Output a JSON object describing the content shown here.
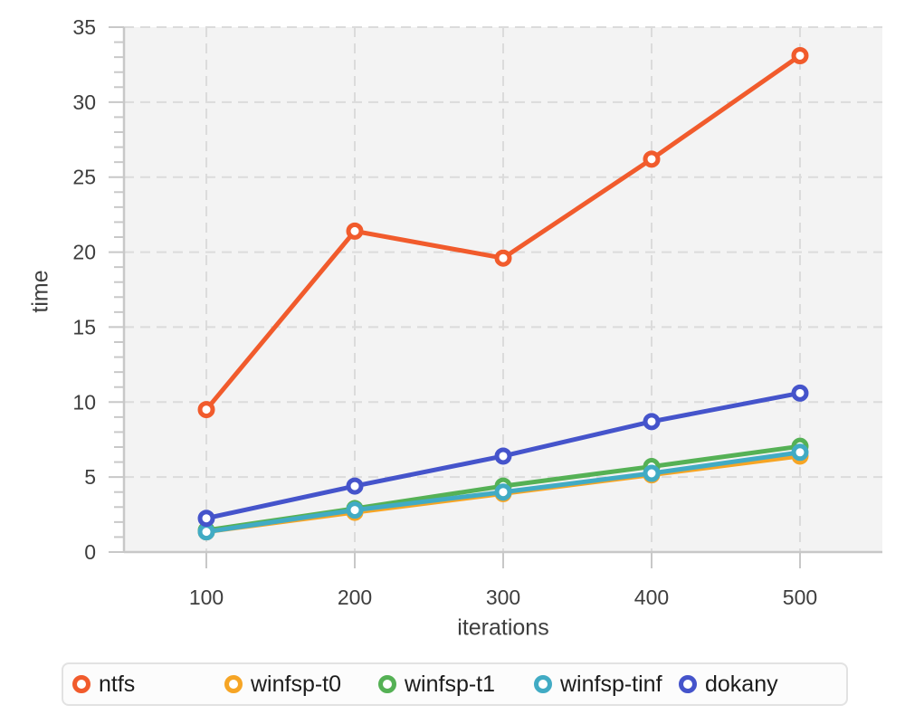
{
  "chart_data": {
    "type": "line",
    "title": "",
    "xlabel": "iterations",
    "ylabel": "time",
    "x": [
      100,
      200,
      300,
      400,
      500
    ],
    "x_tick_labels": [
      "100",
      "200",
      "300",
      "400",
      "500"
    ],
    "y_ticks": [
      0,
      5,
      10,
      15,
      20,
      25,
      30,
      35
    ],
    "xlim": [
      44.5,
      555.5
    ],
    "ylim": [
      0,
      35
    ],
    "grid": true,
    "grid_style": "dashed",
    "legend_position": "bottom",
    "series": [
      {
        "name": "ntfs",
        "color": "#f15b2c",
        "values": [
          9.5,
          21.4,
          19.6,
          26.2,
          33.1
        ]
      },
      {
        "name": "winfsp-t0",
        "color": "#f6a525",
        "values": [
          1.35,
          2.65,
          3.9,
          5.15,
          6.4
        ]
      },
      {
        "name": "winfsp-t1",
        "color": "#55b155",
        "values": [
          1.45,
          2.9,
          4.4,
          5.7,
          7.05
        ]
      },
      {
        "name": "winfsp-tinf",
        "color": "#41abc4",
        "values": [
          1.35,
          2.8,
          4.0,
          5.25,
          6.65
        ]
      },
      {
        "name": "dokany",
        "color": "#4554cb",
        "values": [
          2.25,
          4.4,
          6.4,
          8.7,
          10.6
        ]
      }
    ]
  },
  "style": {
    "plot_bg": "#f3f3f3",
    "gridline_color": "#dbdbdb",
    "axis_color": "#c8c8c8",
    "tick_label_color": "#3e3e3e",
    "marker_fill": "#ffffff"
  }
}
